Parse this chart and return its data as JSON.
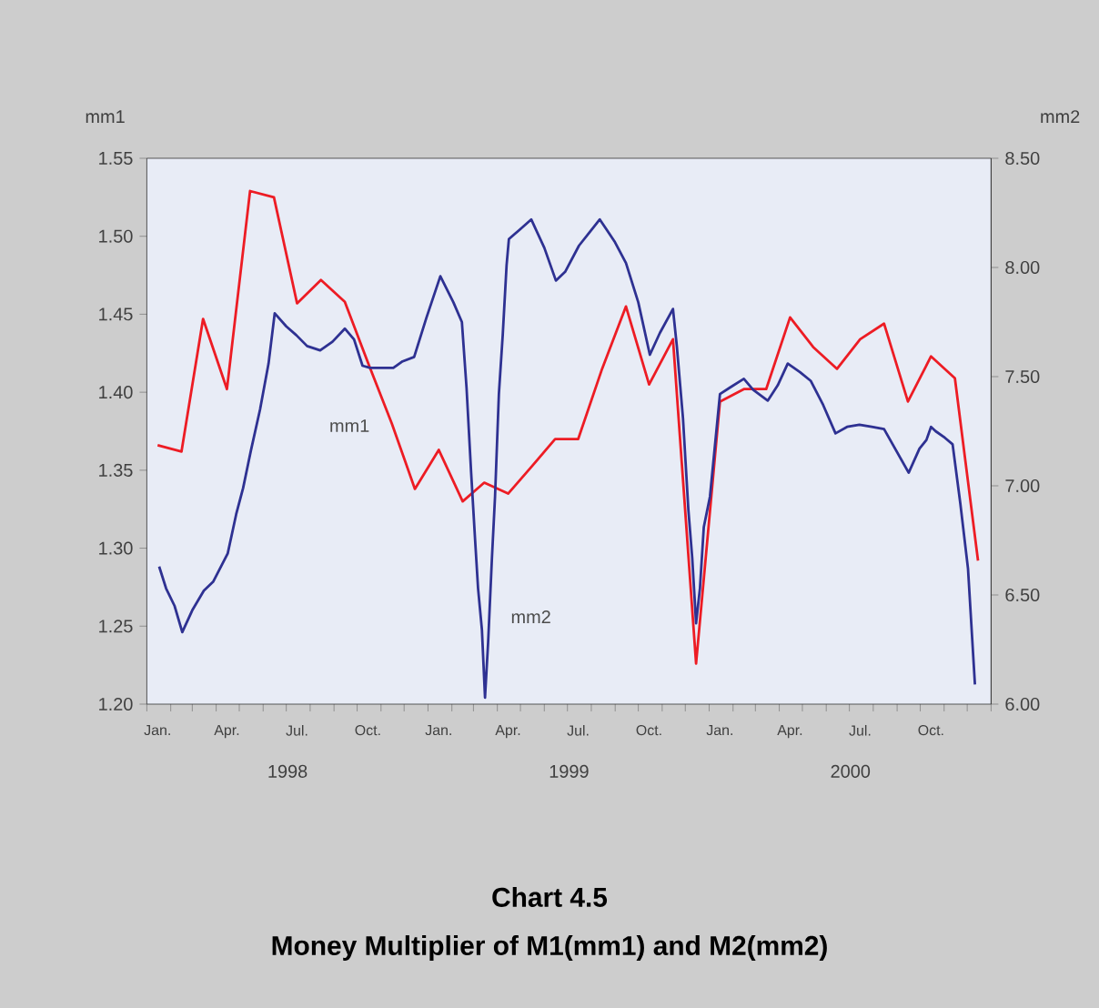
{
  "chart_data": {
    "type": "line",
    "title": "Chart 4.5",
    "subtitle": "Money Multiplier of M1(mm1) and M2(mm2)",
    "ylabel": "mm1",
    "y2label": "mm2",
    "annotations": [
      "1998",
      "1999",
      "2000"
    ],
    "xlim": [
      "1998-01-01",
      "2001-01-01"
    ],
    "xticks": [
      {
        "value": "1998-01-15",
        "label": "Jan."
      },
      {
        "value": "1998-04-15",
        "label": "Apr."
      },
      {
        "value": "1998-07-15",
        "label": "Jul."
      },
      {
        "value": "1998-10-15",
        "label": "Oct."
      },
      {
        "value": "1999-01-15",
        "label": "Jan."
      },
      {
        "value": "1999-04-15",
        "label": "Apr."
      },
      {
        "value": "1999-07-15",
        "label": "Jul."
      },
      {
        "value": "1999-10-15",
        "label": "Oct."
      },
      {
        "value": "2000-01-15",
        "label": "Jan."
      },
      {
        "value": "2000-04-15",
        "label": "Apr."
      },
      {
        "value": "2000-07-15",
        "label": "Jul."
      },
      {
        "value": "2000-10-15",
        "label": "Oct."
      },
      {
        "value": "1998-01-01",
        "label": null
      },
      {
        "value": "1998-02-01",
        "label": null
      },
      {
        "value": "1998-03-01",
        "label": null
      },
      {
        "value": "1998-04-01",
        "label": null
      },
      {
        "value": "1998-05-01",
        "label": null
      },
      {
        "value": "1998-06-01",
        "label": null
      },
      {
        "value": "1998-07-01",
        "label": null
      },
      {
        "value": "1998-08-01",
        "label": null
      },
      {
        "value": "1998-09-01",
        "label": null
      },
      {
        "value": "1998-10-01",
        "label": null
      },
      {
        "value": "1998-11-01",
        "label": null
      },
      {
        "value": "1998-12-01",
        "label": null
      },
      {
        "value": "1999-01-01",
        "label": null
      },
      {
        "value": "1999-02-01",
        "label": null
      },
      {
        "value": "1999-03-01",
        "label": null
      },
      {
        "value": "1999-04-01",
        "label": null
      },
      {
        "value": "1999-05-01",
        "label": null
      },
      {
        "value": "1999-06-01",
        "label": null
      },
      {
        "value": "1999-07-01",
        "label": null
      },
      {
        "value": "1999-08-01",
        "label": null
      },
      {
        "value": "1999-09-01",
        "label": null
      },
      {
        "value": "1999-10-01",
        "label": null
      },
      {
        "value": "1999-11-01",
        "label": null
      },
      {
        "value": "1999-12-01",
        "label": null
      },
      {
        "value": "2000-01-01",
        "label": null
      },
      {
        "value": "2000-02-01",
        "label": null
      },
      {
        "value": "2000-03-01",
        "label": null
      },
      {
        "value": "2000-04-01",
        "label": null
      },
      {
        "value": "2000-05-01",
        "label": null
      },
      {
        "value": "2000-06-01",
        "label": null
      },
      {
        "value": "2000-07-01",
        "label": null
      },
      {
        "value": "2000-08-01",
        "label": null
      },
      {
        "value": "2000-09-01",
        "label": null
      },
      {
        "value": "2000-10-01",
        "label": null
      },
      {
        "value": "2000-11-01",
        "label": null
      },
      {
        "value": "2000-12-01",
        "label": null
      },
      {
        "value": "2001-01-01",
        "label": null
      }
    ],
    "ylim": [
      1.2,
      1.55
    ],
    "yticks": [
      {
        "value": 1.2,
        "label": "1.20"
      },
      {
        "value": 1.25,
        "label": "1.25"
      },
      {
        "value": 1.3,
        "label": "1.30"
      },
      {
        "value": 1.35,
        "label": "1.35"
      },
      {
        "value": 1.4,
        "label": "1.40"
      },
      {
        "value": 1.45,
        "label": "1.45"
      },
      {
        "value": 1.5,
        "label": "1.50"
      },
      {
        "value": 1.55,
        "label": "1.55"
      }
    ],
    "y2lim": [
      6,
      8.5
    ],
    "y2ticks": [
      {
        "value": 6,
        "label": "6.00"
      },
      {
        "value": 6.5,
        "label": "6.50"
      },
      {
        "value": 7,
        "label": "7.00"
      },
      {
        "value": 7.5,
        "label": "7.50"
      },
      {
        "value": 8,
        "label": "8.00"
      },
      {
        "value": 8.5,
        "label": "8.50"
      }
    ],
    "series": [
      {
        "name": "mm1",
        "color": "#ed1c24",
        "x": [
          "1998-01-15",
          "1998-02-15",
          "1998-03-15",
          "1998-04-15",
          "1998-05-15",
          "1998-06-15",
          "1998-07-15",
          "1998-08-15",
          "1998-09-15",
          "1998-10-15",
          "1998-11-15",
          "1998-12-15",
          "1999-01-15",
          "1999-02-15",
          "1999-03-15",
          "1999-04-15",
          "1999-05-15",
          "1999-06-15",
          "1999-07-15",
          "1999-08-15",
          "1999-09-15",
          "1999-10-15",
          "1999-11-15",
          "1999-12-15",
          "2000-01-15",
          "2000-02-15",
          "2000-03-15",
          "2000-04-15",
          "2000-05-15",
          "2000-06-15",
          "2000-07-15",
          "2000-08-15",
          "2000-09-15",
          "2000-10-15",
          "2000-11-15",
          "2000-12-15"
        ],
        "values": [
          1.366,
          1.362,
          1.447,
          1.402,
          1.529,
          1.525,
          1.457,
          1.472,
          1.458,
          1.419,
          1.38,
          1.338,
          1.363,
          1.33,
          1.342,
          1.335,
          1.352,
          1.37,
          1.37,
          1.415,
          1.455,
          1.405,
          1.434,
          1.226,
          1.394,
          1.402,
          1.402,
          1.448,
          1.429,
          1.415,
          1.434,
          1.444,
          1.394,
          1.423,
          1.409,
          1.292
        ]
      },
      {
        "name": "mm2",
        "color": "#2e3192",
        "axis": "y2",
        "x": [
          "1998-01-17",
          "1998-01-26",
          "1998-02-06",
          "1998-02-16",
          "1998-03-01",
          "1998-03-16",
          "1998-03-28",
          "1998-04-16",
          "1998-04-27",
          "1998-05-06",
          "1998-05-16",
          "1998-05-28",
          "1998-06-08",
          "1998-06-16",
          "1998-07-01",
          "1998-07-14",
          "1998-07-28",
          "1998-08-14",
          "1998-08-30",
          "1998-09-15",
          "1998-09-27",
          "1998-10-08",
          "1998-10-18",
          "1998-11-17",
          "1998-11-29",
          "1998-12-14",
          "1998-12-30",
          "1999-01-17",
          "1999-02-03",
          "1999-02-14",
          "1999-02-20",
          "1999-02-26",
          "1999-03-03",
          "1999-03-07",
          "1999-03-12",
          "1999-03-16",
          "1999-03-20",
          "1999-03-25",
          "1999-03-29",
          "1999-04-03",
          "1999-04-08",
          "1999-04-13",
          "1999-04-16",
          "1999-04-29",
          "1999-05-15",
          "1999-06-01",
          "1999-06-16",
          "1999-06-28",
          "1999-07-16",
          "1999-08-12",
          "1999-08-31",
          "1999-09-15",
          "1999-10-01",
          "1999-10-16",
          "1999-10-29",
          "1999-11-15",
          "1999-11-20",
          "1999-11-28",
          "1999-12-05",
          "1999-12-10",
          "1999-12-15",
          "1999-12-20",
          "1999-12-25",
          "2000-01-02",
          "2000-01-15",
          "2000-01-28",
          "2000-02-15",
          "2000-02-27",
          "2000-03-17",
          "2000-03-30",
          "2000-04-12",
          "2000-04-28",
          "2000-05-12",
          "2000-05-28",
          "2000-06-13",
          "2000-06-28",
          "2000-07-14",
          "2000-07-30",
          "2000-08-15",
          "2000-08-31",
          "2000-09-16",
          "2000-09-30",
          "2000-10-09",
          "2000-10-15",
          "2000-10-21",
          "2000-11-02",
          "2000-11-12",
          "2000-11-22",
          "2000-12-02",
          "2000-12-11"
        ],
        "values": [
          6.63,
          6.53,
          6.45,
          6.33,
          6.43,
          6.52,
          6.56,
          6.69,
          6.87,
          6.99,
          7.16,
          7.35,
          7.56,
          7.79,
          7.73,
          7.69,
          7.64,
          7.62,
          7.66,
          7.72,
          7.67,
          7.55,
          7.54,
          7.54,
          7.57,
          7.59,
          7.77,
          7.96,
          7.84,
          7.75,
          7.45,
          7.06,
          6.76,
          6.53,
          6.34,
          6.03,
          6.28,
          6.67,
          6.95,
          7.42,
          7.69,
          8.01,
          8.13,
          8.17,
          8.22,
          8.09,
          7.94,
          7.98,
          8.1,
          8.22,
          8.12,
          8.02,
          7.84,
          7.6,
          7.7,
          7.81,
          7.64,
          7.31,
          6.89,
          6.67,
          6.37,
          6.53,
          6.81,
          6.95,
          7.42,
          7.45,
          7.49,
          7.44,
          7.39,
          7.46,
          7.56,
          7.52,
          7.48,
          7.37,
          7.24,
          7.27,
          7.28,
          7.27,
          7.26,
          7.16,
          7.06,
          7.17,
          7.21,
          7.27,
          7.25,
          7.22,
          7.19,
          6.92,
          6.62,
          6.09
        ]
      }
    ]
  }
}
